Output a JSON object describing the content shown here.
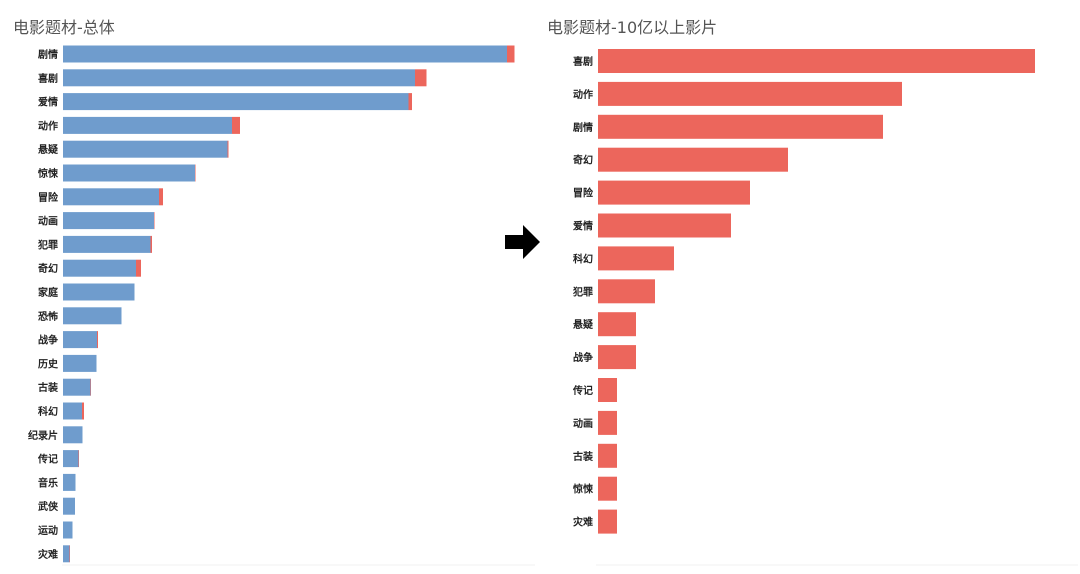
{
  "colors": {
    "other": "#6f9ccd",
    "over_1b": "#ec665c",
    "arrow": "#000000"
  },
  "arrow_icon": "right-arrow",
  "chart_data": [
    {
      "type": "bar",
      "orientation": "horizontal",
      "stacked": true,
      "title": "电影题材-总体",
      "categories": [
        "剧情",
        "喜剧",
        "爱情",
        "动作",
        "悬疑",
        "惊悚",
        "冒险",
        "动画",
        "犯罪",
        "奇幻",
        "家庭",
        "恐怖",
        "战争",
        "历史",
        "古装",
        "科幻",
        "纪录片",
        "传记",
        "音乐",
        "武侠",
        "运动",
        "灾难"
      ],
      "series": [
        {
          "color": "#6f9ccd",
          "values": [
            888,
            704,
            691,
            338,
            329,
            264,
            192,
            182,
            175,
            146,
            143,
            117,
            68,
            67,
            55,
            38,
            39,
            31,
            25,
            24,
            19,
            13
          ]
        },
        {
          "color": "#ec665c",
          "values": [
            15,
            23,
            7,
            16,
            2,
            1,
            8,
            1,
            3,
            10,
            0,
            0,
            2,
            0,
            1,
            4,
            0,
            1,
            0,
            0,
            0,
            1
          ]
        }
      ],
      "axis_visible": false,
      "grid": false
    },
    {
      "type": "bar",
      "orientation": "horizontal",
      "title": "电影题材-10亿以上影片",
      "categories": [
        "喜剧",
        "动作",
        "剧情",
        "奇幻",
        "冒险",
        "爱情",
        "科幻",
        "犯罪",
        "悬疑",
        "战争",
        "传记",
        "动画",
        "古装",
        "惊悚",
        "灾难"
      ],
      "values": [
        23,
        16,
        15,
        10,
        8,
        7,
        4,
        3,
        2,
        2,
        1,
        1,
        1,
        1,
        1
      ],
      "color": "#ec665c",
      "axis_visible": false,
      "grid": false
    }
  ]
}
